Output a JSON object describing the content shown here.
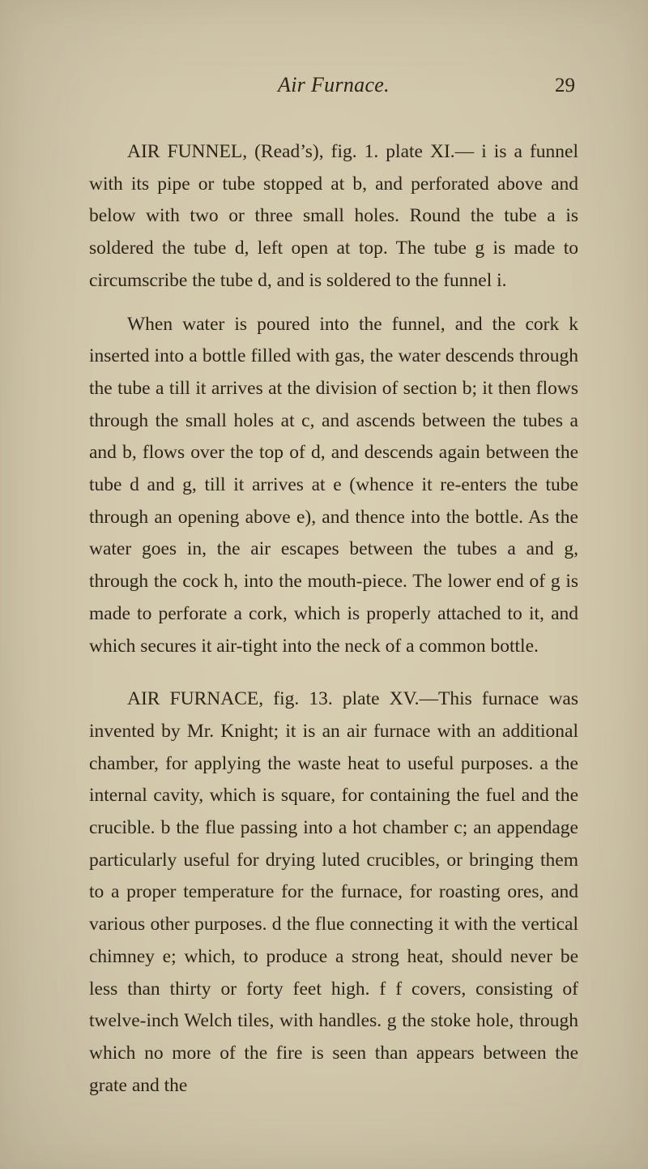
{
  "page": {
    "running_title": "Air Furnace.",
    "page_number": "29"
  },
  "paragraphs": {
    "p1": "AIR FUNNEL, (Read’s), fig. 1. plate XI.— i is a funnel with its pipe or tube stopped at b, and perforated above and below with two or three small holes. Round the tube a is soldered the tube d, left open at top. The tube g is made to circumscribe the tube d, and is soldered to the funnel i.",
    "p2": "When water is poured into the funnel, and the cork k inserted into a bottle filled with gas, the water descends through the tube a till it arrives at the division of section b; it then flows through the small holes at c, and ascends between the tubes a and b, flows over the top of d, and descends again between the tube d and g, till it arrives at e (whence it re-enters the tube through an opening above e), and thence into the bottle. As the water goes in, the air escapes between the tubes a and g, through the cock h, into the mouth-piece. The lower end of g is made to perforate a cork, which is properly attached to it, and which secures it air-tight into the neck of a common bottle.",
    "p3": "AIR FURNACE, fig. 13. plate XV.—This furnace was invented by Mr. Knight; it is an air furnace with an additional chamber, for applying the waste heat to useful purposes. a the internal cavity, which is square, for containing the fuel and the crucible. b the flue passing into a hot chamber c; an appendage particularly useful for drying luted crucibles, or bringing them to a proper temperature for the furnace, for roasting ores, and various other purposes. d the flue connecting it with the vertical chimney e; which, to produce a strong heat, should never be less than thirty or forty feet high. f f covers, consisting of twelve-inch Welch tiles, with handles. g the stoke hole, through which no more of the fire is seen than appears between the grate and the"
  }
}
